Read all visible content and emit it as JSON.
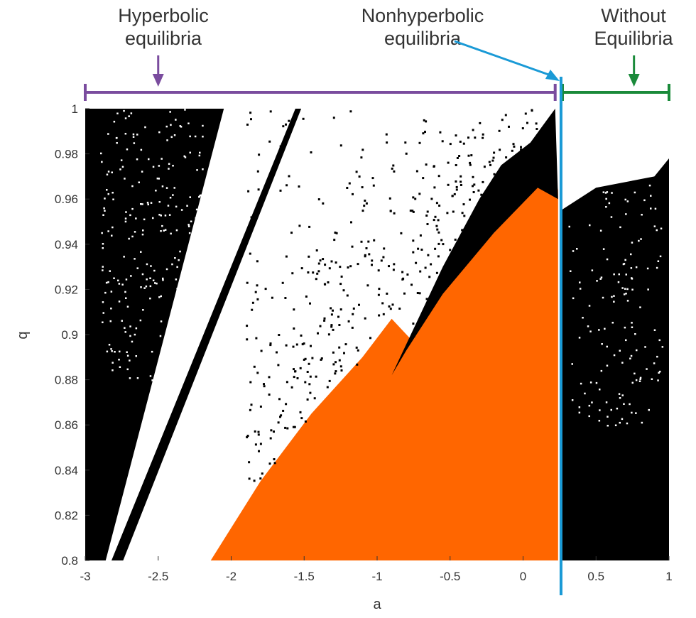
{
  "chart_data": {
    "type": "heatmap",
    "title": "",
    "xlabel": "a",
    "ylabel": "q",
    "xlim": [
      -3,
      1
    ],
    "ylim": [
      0.8,
      1
    ],
    "x_ticks": [
      -3,
      -2.5,
      -2,
      -1.5,
      -1,
      -0.5,
      0,
      0.5,
      1
    ],
    "x_tick_labels": [
      "-3",
      "-2.5",
      "-2",
      "-1.5",
      "-1",
      "-0.5",
      "0",
      "0.5",
      "1"
    ],
    "y_ticks": [
      0.8,
      0.82,
      0.84,
      0.86,
      0.88,
      0.9,
      0.92,
      0.94,
      0.96,
      0.98,
      1
    ],
    "y_tick_labels": [
      "0.8",
      "0.82",
      "0.84",
      "0.86",
      "0.88",
      "0.9",
      "0.92",
      "0.94",
      "0.96",
      "0.98",
      "1"
    ],
    "grid": false,
    "colors": {
      "chaotic": "#000000",
      "hidden": "#ff6600",
      "background": "#ffffff",
      "separator": "#1a9ad6",
      "hyperbolic": "#7a4c9e",
      "without": "#1a8a3a"
    },
    "regions": [
      {
        "name": "left-black-band",
        "color": "#000000",
        "polygon": [
          [
            -3,
            0.8
          ],
          [
            -2.86,
            0.8
          ],
          [
            -2.05,
            1
          ],
          [
            -3,
            1
          ]
        ]
      },
      {
        "name": "diagonal-black-stripe",
        "color": "#000000",
        "polygon": [
          [
            -2.82,
            0.8
          ],
          [
            -2.74,
            0.8
          ],
          [
            -1.52,
            1
          ],
          [
            -1.56,
            1
          ]
        ]
      },
      {
        "name": "orange-triangle",
        "color": "#ff6600",
        "polygon": [
          [
            -2.14,
            0.8
          ],
          [
            0.24,
            0.8
          ],
          [
            0.24,
            0.964
          ],
          [
            0.18,
            0.978
          ],
          [
            0.08,
            0.965
          ],
          [
            -0.2,
            0.945
          ],
          [
            -0.55,
            0.92
          ],
          [
            -0.77,
            0.898
          ],
          [
            -0.9,
            0.907
          ],
          [
            -1.1,
            0.89
          ],
          [
            -1.45,
            0.865
          ],
          [
            -1.8,
            0.835
          ]
        ]
      },
      {
        "name": "black-wedge-upper",
        "color": "#000000",
        "polygon": [
          [
            -0.9,
            0.882
          ],
          [
            -0.55,
            0.93
          ],
          [
            -0.3,
            0.96
          ],
          [
            -0.15,
            0.975
          ],
          [
            0.05,
            0.985
          ],
          [
            0.22,
            1
          ],
          [
            0.24,
            0.96
          ],
          [
            0.1,
            0.965
          ],
          [
            -0.2,
            0.945
          ],
          [
            -0.55,
            0.918
          ],
          [
            -0.8,
            0.893
          ]
        ]
      },
      {
        "name": "right-black-block",
        "color": "#000000",
        "polygon": [
          [
            0.26,
            0.8
          ],
          [
            1,
            0.8
          ],
          [
            1,
            0.978
          ],
          [
            0.9,
            0.97
          ],
          [
            0.5,
            0.965
          ],
          [
            0.26,
            0.955
          ]
        ]
      }
    ],
    "separator_a": 0.26,
    "annotations": [
      {
        "text_lines": [
          "Hyperbolic",
          "equilibria"
        ],
        "range_a": [
          -3,
          0.22
        ],
        "arrow_a": -2.5
      },
      {
        "text_lines": [
          "Nonhyperbolic",
          "equilibria"
        ],
        "arrow_a": 0.26
      },
      {
        "text_lines": [
          "Without",
          "Equilibria"
        ],
        "range_a": [
          0.27,
          1
        ],
        "arrow_a": 0.76
      }
    ]
  }
}
